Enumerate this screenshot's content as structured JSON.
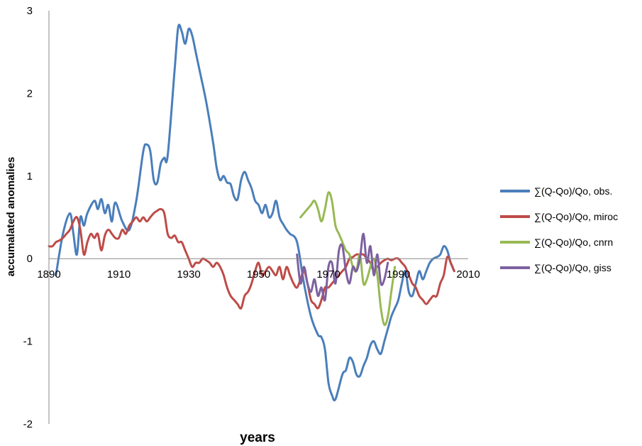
{
  "chart_data": {
    "type": "line",
    "title": "",
    "xlabel": "years",
    "ylabel": "accumalated anomalies",
    "xlim": [
      1890,
      2010
    ],
    "ylim": [
      -2,
      3
    ],
    "x_ticks": [
      "1890",
      "1910",
      "1930",
      "1950",
      "1970",
      "1990",
      "2010"
    ],
    "y_ticks": [
      "3",
      "2",
      "1",
      "0",
      "-1",
      "-2"
    ],
    "grid": false,
    "legend_position": "right",
    "series": [
      {
        "name": "∑(Q-Qo)/Qo, obs.",
        "color": "#4a7ebb",
        "x": [
          1892,
          1894,
          1896,
          1897,
          1898,
          1899,
          1900,
          1901,
          1903,
          1904,
          1905,
          1906,
          1907,
          1908,
          1909,
          1911,
          1913,
          1915,
          1917,
          1918,
          1919,
          1920,
          1921,
          1922,
          1923,
          1924,
          1926,
          1927,
          1928,
          1929,
          1930,
          1931,
          1932,
          1933,
          1935,
          1937,
          1938,
          1939,
          1940,
          1941,
          1942,
          1943,
          1944,
          1945,
          1946,
          1947,
          1948,
          1949,
          1950,
          1951,
          1952,
          1953,
          1954,
          1955,
          1956,
          1957,
          1958,
          1959,
          1961,
          1963,
          1965,
          1967,
          1968,
          1969,
          1970,
          1971,
          1972,
          1974,
          1975,
          1976,
          1977,
          1978,
          1979,
          1980,
          1981,
          1982,
          1983,
          1984,
          1985,
          1986,
          1987,
          1988,
          1989,
          1990,
          1991,
          1992,
          1993,
          1994,
          1995,
          1996,
          1997,
          1998,
          1999,
          2000,
          2001,
          2002,
          2003,
          2004,
          2005,
          2006
        ],
        "y": [
          -0.2,
          0.3,
          0.55,
          0.3,
          0.05,
          0.5,
          0.4,
          0.55,
          0.7,
          0.6,
          0.72,
          0.55,
          0.65,
          0.45,
          0.68,
          0.45,
          0.35,
          0.7,
          1.3,
          1.38,
          1.3,
          0.95,
          0.92,
          1.15,
          1.22,
          1.25,
          2.3,
          2.8,
          2.75,
          2.6,
          2.78,
          2.7,
          2.5,
          2.3,
          1.9,
          1.4,
          1.1,
          0.95,
          1.0,
          0.92,
          0.9,
          0.75,
          0.72,
          0.95,
          1.05,
          0.95,
          0.85,
          0.7,
          0.65,
          0.55,
          0.65,
          0.5,
          0.55,
          0.7,
          0.5,
          0.42,
          0.35,
          0.3,
          0.2,
          -0.3,
          -0.7,
          -0.92,
          -0.95,
          -1.1,
          -1.5,
          -1.65,
          -1.7,
          -1.4,
          -1.35,
          -1.2,
          -1.25,
          -1.4,
          -1.42,
          -1.3,
          -1.2,
          -1.05,
          -1.0,
          -1.1,
          -1.15,
          -1.0,
          -0.85,
          -0.7,
          -0.6,
          -0.5,
          -0.3,
          -0.15,
          -0.4,
          -0.45,
          -0.3,
          -0.15,
          -0.25,
          -0.15,
          -0.05,
          0.0,
          0.02,
          0.05,
          0.15,
          0.1,
          -0.05,
          -0.15
        ]
      },
      {
        "name": "∑(Q-Qo)/Qo, miroc",
        "color": "#be4b48",
        "x": [
          1890,
          1891,
          1892,
          1893,
          1894,
          1895,
          1896,
          1897,
          1898,
          1899,
          1900,
          1901,
          1902,
          1903,
          1904,
          1905,
          1906,
          1907,
          1908,
          1909,
          1910,
          1911,
          1912,
          1913,
          1914,
          1915,
          1916,
          1917,
          1918,
          1919,
          1920,
          1921,
          1922,
          1923,
          1924,
          1925,
          1926,
          1927,
          1928,
          1929,
          1930,
          1931,
          1932,
          1933,
          1934,
          1935,
          1936,
          1937,
          1938,
          1939,
          1940,
          1941,
          1942,
          1943,
          1944,
          1945,
          1946,
          1947,
          1948,
          1949,
          1950,
          1951,
          1952,
          1953,
          1954,
          1955,
          1956,
          1957,
          1958,
          1959,
          1960,
          1961,
          1962,
          1963,
          1964,
          1965,
          1966,
          1967,
          1968,
          1969,
          1970,
          1971,
          1972,
          1973,
          1974,
          1975,
          1976,
          1977,
          1978,
          1979,
          1980,
          1981,
          1982,
          1983,
          1984,
          1985,
          1986,
          1987,
          1988,
          1989,
          1990,
          1991,
          1992,
          1993,
          1994,
          1995,
          1996,
          1997,
          1998,
          1999,
          2000,
          2001,
          2002,
          2003,
          2004,
          2005,
          2006
        ],
        "y": [
          0.15,
          0.15,
          0.2,
          0.22,
          0.25,
          0.3,
          0.35,
          0.45,
          0.5,
          0.35,
          0.05,
          0.2,
          0.3,
          0.25,
          0.3,
          0.1,
          0.28,
          0.35,
          0.3,
          0.25,
          0.25,
          0.35,
          0.3,
          0.4,
          0.45,
          0.5,
          0.45,
          0.5,
          0.45,
          0.5,
          0.55,
          0.58,
          0.6,
          0.55,
          0.3,
          0.25,
          0.28,
          0.2,
          0.2,
          0.1,
          0.0,
          -0.1,
          -0.05,
          -0.05,
          0.0,
          -0.02,
          -0.05,
          -0.1,
          -0.05,
          -0.1,
          -0.2,
          -0.35,
          -0.45,
          -0.5,
          -0.55,
          -0.6,
          -0.45,
          -0.4,
          -0.3,
          -0.15,
          -0.05,
          -0.2,
          -0.15,
          -0.1,
          -0.15,
          -0.2,
          -0.1,
          -0.25,
          -0.1,
          -0.2,
          -0.3,
          -0.35,
          -0.25,
          -0.15,
          -0.3,
          -0.5,
          -0.55,
          -0.6,
          -0.5,
          -0.35,
          -0.35,
          -0.3,
          -0.25,
          -0.2,
          -0.15,
          -0.1,
          0.0,
          0.02,
          0.05,
          0.05,
          0.05,
          0.0,
          -0.05,
          -0.15,
          -0.1,
          -0.05,
          -0.02,
          0.0,
          -0.02,
          0.0,
          0.0,
          -0.05,
          -0.1,
          -0.2,
          -0.3,
          -0.35,
          -0.45,
          -0.5,
          -0.55,
          -0.5,
          -0.45,
          -0.45,
          -0.3,
          -0.2,
          0.02,
          -0.05,
          -0.15
        ]
      },
      {
        "name": "∑(Q-Qo)/Qo, cnrn",
        "color": "#98b954",
        "x": [
          1962,
          1963,
          1964,
          1965,
          1966,
          1967,
          1968,
          1969,
          1970,
          1971,
          1972,
          1973,
          1974,
          1975,
          1976,
          1977,
          1978,
          1979,
          1980,
          1981,
          1982,
          1983,
          1984,
          1985,
          1986,
          1987,
          1988,
          1989
        ],
        "y": [
          0.5,
          0.55,
          0.6,
          0.65,
          0.7,
          0.6,
          0.45,
          0.6,
          0.8,
          0.7,
          0.4,
          0.3,
          0.2,
          0.1,
          0.05,
          -0.1,
          -0.15,
          0.05,
          -0.3,
          -0.25,
          -0.1,
          0.0,
          -0.2,
          -0.6,
          -0.8,
          -0.7,
          -0.4,
          -0.1
        ]
      },
      {
        "name": "∑(Q-Qo)/Qo, giss",
        "color": "#7d60a0",
        "x": [
          1961,
          1962,
          1963,
          1964,
          1965,
          1966,
          1967,
          1968,
          1969,
          1970,
          1971,
          1972,
          1973,
          1974,
          1975,
          1976,
          1977,
          1978,
          1979,
          1980,
          1981,
          1982,
          1983,
          1984,
          1985,
          1986,
          1987
        ],
        "y": [
          0.05,
          -0.3,
          -0.1,
          -0.3,
          -0.4,
          -0.25,
          -0.45,
          -0.35,
          -0.5,
          -0.1,
          -0.05,
          -0.3,
          0.1,
          0.15,
          -0.15,
          -0.3,
          -0.1,
          -0.15,
          0.0,
          0.3,
          -0.05,
          0.15,
          -0.2,
          0.05,
          -0.3,
          -0.25,
          -0.05
        ]
      }
    ]
  }
}
